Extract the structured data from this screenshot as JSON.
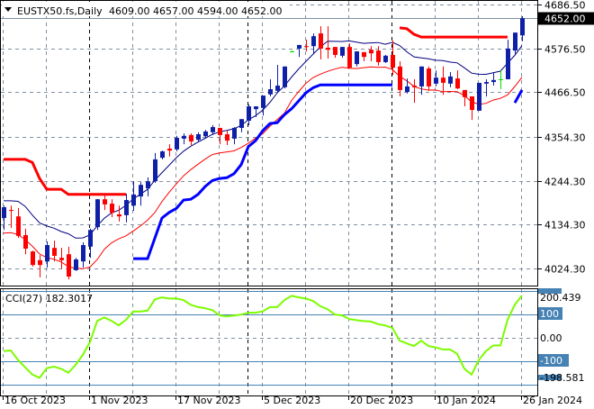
{
  "header": {
    "symbol": "EUSTX50.fs,Daily",
    "ohlc": "4609.00 4657.00 4594.00 4652.00"
  },
  "price_axis": {
    "ticks": [
      "4686.50",
      "4576.50",
      "4466.50",
      "4354.30",
      "4244.30",
      "4134.30",
      "4024.30"
    ],
    "tick_values": [
      4686.5,
      4576.5,
      4466.5,
      4354.3,
      4244.3,
      4134.3,
      4024.3
    ],
    "current_price_label": "4652.00",
    "current_price": 4652.0
  },
  "date_axis": {
    "labels": [
      "16 Oct 2023",
      "1 Nov 2023",
      "17 Nov 2023",
      "5 Dec 2023",
      "20 Dec 2023",
      "10 Jan 2024",
      "26 Jan 2024"
    ],
    "label_bar_index": [
      0,
      12,
      24,
      36,
      48,
      60,
      72
    ]
  },
  "cci": {
    "label": "CCI(27) 182.3017",
    "ticks": [
      "200.439",
      "100",
      "0.00",
      "-100",
      "-198.581"
    ],
    "tick_values": [
      200,
      100,
      0,
      -100,
      -200
    ]
  },
  "colors": {
    "up": "#0f1fa6",
    "down": "#ff0000",
    "doji": "#00e000",
    "ma_upper": "#000080",
    "ma_lower": "#ff0000",
    "channel_upper": "#ff0000",
    "channel_lower": "#0000ff",
    "cci": "#7cfc00",
    "level": "#4682b4"
  },
  "chart_data": [
    {
      "type": "candlestick",
      "title": "EUSTX50.fs,Daily",
      "ylim": [
        3981.4,
        4697.8
      ],
      "ohlc": [
        [
          4151,
          4182,
          4121,
          4178
        ],
        [
          4171,
          4182,
          4126,
          4169
        ],
        [
          4155,
          4176,
          4101,
          4106
        ],
        [
          4108,
          4124,
          4060,
          4074
        ],
        [
          4067,
          4069,
          4029,
          4033
        ],
        [
          4045,
          4058,
          4002,
          4033
        ],
        [
          4042,
          4092,
          4027,
          4083
        ],
        [
          4076,
          4094,
          4042,
          4056
        ],
        [
          4051,
          4076,
          4024,
          4045
        ],
        [
          4060,
          4079,
          3997,
          4004
        ],
        [
          4020,
          4051,
          4018,
          4047
        ],
        [
          4042,
          4090,
          4027,
          4083
        ],
        [
          4079,
          4124,
          4051,
          4121
        ],
        [
          4128,
          4198,
          4121,
          4198
        ],
        [
          4198,
          4207,
          4171,
          4185
        ],
        [
          4187,
          4198,
          4153,
          4164
        ],
        [
          4160,
          4182,
          4142,
          4155
        ],
        [
          4158,
          4212,
          4140,
          4196
        ],
        [
          4182,
          4243,
          4169,
          4210
        ],
        [
          4205,
          4241,
          4182,
          4234
        ],
        [
          4225,
          4253,
          4205,
          4243
        ],
        [
          4243,
          4314,
          4239,
          4298
        ],
        [
          4302,
          4320,
          4298,
          4318
        ],
        [
          4325,
          4336,
          4305,
          4320
        ],
        [
          4323,
          4357,
          4318,
          4352
        ],
        [
          4350,
          4363,
          4336,
          4357
        ],
        [
          4359,
          4363,
          4334,
          4343
        ],
        [
          4347,
          4366,
          4341,
          4361
        ],
        [
          4356,
          4372,
          4352,
          4368
        ],
        [
          4366,
          4384,
          4359,
          4379
        ],
        [
          4377,
          4377,
          4336,
          4359
        ],
        [
          4361,
          4370,
          4334,
          4345
        ],
        [
          4350,
          4379,
          4336,
          4377
        ],
        [
          4377,
          4399,
          4366,
          4399
        ],
        [
          4395,
          4436,
          4384,
          4431
        ],
        [
          4424,
          4431,
          4404,
          4431
        ],
        [
          4427,
          4458,
          4408,
          4458
        ],
        [
          4461,
          4499,
          4456,
          4474
        ],
        [
          4470,
          4535,
          4465,
          4483
        ],
        [
          4479,
          4531,
          4476,
          4531
        ],
        [
          4569,
          4571,
          4567,
          4569
        ],
        [
          4576,
          4585,
          4555,
          4585
        ],
        [
          4582,
          4598,
          4569,
          4580
        ],
        [
          4582,
          4614,
          4562,
          4607
        ],
        [
          4614,
          4632,
          4549,
          4576
        ],
        [
          4578,
          4632,
          4551,
          4573
        ],
        [
          4580,
          4580,
          4553,
          4560
        ],
        [
          4558,
          4580,
          4553,
          4580
        ],
        [
          4580,
          4589,
          4526,
          4528
        ],
        [
          4537,
          4569,
          4531,
          4569
        ],
        [
          4567,
          4567,
          4544,
          4555
        ],
        [
          4573,
          4582,
          4544,
          4564
        ],
        [
          4571,
          4582,
          4533,
          4542
        ],
        [
          4542,
          4560,
          4540,
          4558
        ],
        [
          4560,
          4596,
          4510,
          4528
        ],
        [
          4531,
          4544,
          4456,
          4472
        ],
        [
          4467,
          4501,
          4463,
          4481
        ],
        [
          4483,
          4499,
          4440,
          4479
        ],
        [
          4481,
          4531,
          4460,
          4531
        ],
        [
          4526,
          4531,
          4470,
          4481
        ],
        [
          4488,
          4521,
          4481,
          4503
        ],
        [
          4503,
          4531,
          4460,
          4490
        ],
        [
          4488,
          4517,
          4479,
          4506
        ],
        [
          4501,
          4521,
          4474,
          4476
        ],
        [
          4472,
          4472,
          4431,
          4454
        ],
        [
          4456,
          4456,
          4397,
          4422
        ],
        [
          4420,
          4490,
          4420,
          4490
        ],
        [
          4488,
          4499,
          4456,
          4492
        ],
        [
          4492,
          4517,
          4483,
          4497
        ],
        [
          4499,
          4521,
          4474,
          4499
        ],
        [
          4499,
          4598,
          4499,
          4576
        ],
        [
          4571,
          4616,
          4562,
          4616
        ],
        [
          4609,
          4657,
          4594,
          4652
        ]
      ],
      "channel_upper": [
        4298,
        4298,
        4298,
        4298,
        4290,
        4250,
        4223,
        4223,
        4223,
        4210,
        4210,
        4210,
        4210,
        4210,
        4210,
        4210,
        4210,
        4210,
        null,
        null,
        null,
        null,
        null,
        null,
        null,
        null,
        null,
        null,
        null,
        null,
        null,
        null,
        null,
        null,
        null,
        null,
        null,
        null,
        null,
        null,
        null,
        null,
        null,
        null,
        null,
        null,
        null,
        null,
        null,
        null,
        null,
        null,
        null,
        null,
        null,
        4628,
        4626,
        4612,
        4605,
        4605,
        4605,
        4605,
        4605,
        4605,
        4605,
        4605,
        4605,
        4605,
        4605,
        4605,
        4605,
        null,
        null
      ],
      "channel_lower": [
        null,
        null,
        null,
        null,
        null,
        null,
        null,
        null,
        null,
        null,
        null,
        null,
        null,
        null,
        null,
        null,
        null,
        null,
        4049,
        4049,
        4049,
        4100,
        4151,
        4165,
        4175,
        4196,
        4198,
        4210,
        4230,
        4245,
        4250,
        4252,
        4262,
        4285,
        4330,
        4345,
        4370,
        4388,
        4390,
        4410,
        4425,
        4445,
        4465,
        4478,
        4485,
        4485,
        4485,
        4485,
        4485,
        4485,
        4485,
        4485,
        4485,
        4485,
        4485,
        null,
        null,
        null,
        null,
        null,
        null,
        null,
        null,
        null,
        null,
        null,
        null,
        null,
        null,
        null,
        null,
        4440,
        4472
      ]
    },
    {
      "type": "line",
      "title": "CCI(27)",
      "ylim": [
        -240,
        213
      ],
      "levels": [
        200,
        100,
        -100,
        -200
      ],
      "values": [
        -57,
        -54,
        -95,
        -127,
        -158,
        -172,
        -130,
        -124,
        -133,
        -150,
        -116,
        -73,
        -18,
        73,
        88,
        73,
        54,
        78,
        113,
        113,
        117,
        165,
        174,
        169,
        169,
        162,
        142,
        132,
        127,
        119,
        97,
        92,
        96,
        100,
        108,
        108,
        114,
        132,
        132,
        162,
        181,
        174,
        169,
        158,
        136,
        123,
        100,
        97,
        81,
        76,
        72,
        70,
        59,
        53,
        43,
        -12,
        -24,
        -35,
        -12,
        -35,
        -41,
        -50,
        -50,
        -69,
        -133,
        -158,
        -95,
        -57,
        -33,
        -33,
        78,
        142,
        182.3
      ]
    }
  ]
}
